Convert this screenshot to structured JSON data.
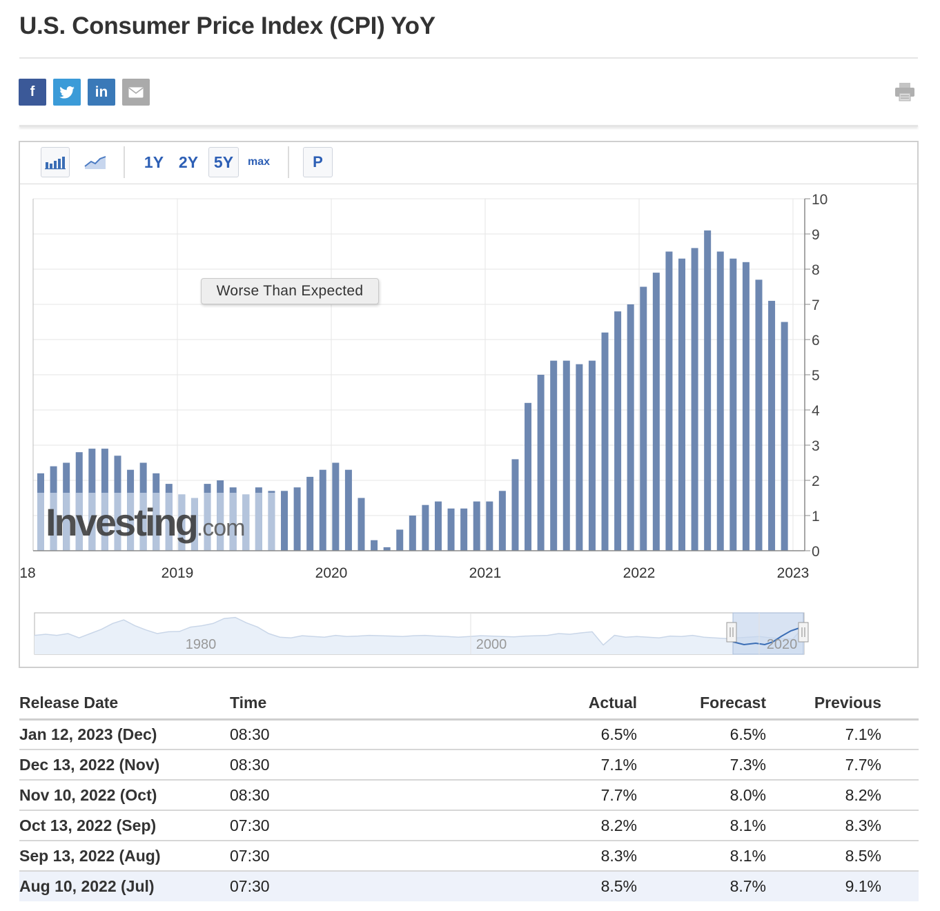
{
  "page": {
    "title": "U.S. Consumer Price Index (CPI) YoY"
  },
  "share": {
    "facebook": "f",
    "twitter": "twitter-bird-icon",
    "linkedin": "in",
    "email": "envelope-icon"
  },
  "toolbar": {
    "bar_icon": "bar-chart-icon",
    "line_icon": "line-chart-icon",
    "ranges": [
      "1Y",
      "2Y",
      "5Y",
      "max"
    ],
    "selected_range": "5Y",
    "p_label": "P"
  },
  "tooltip": "Worse Than Expected",
  "watermark": {
    "brand": "Investing",
    "suffix": ".com"
  },
  "colors": {
    "bar": "#6d87b1",
    "bar_faded": "#b4c4dc",
    "navigator_selected": "#3a6db5",
    "red": "#d9221c",
    "green": "#3b9b2d"
  },
  "chart_data": {
    "type": "bar",
    "x_ticks": [
      "18",
      "2019",
      "2020",
      "2021",
      "2022",
      "2023"
    ],
    "y_ticks": [
      "0",
      "1",
      "2",
      "3",
      "4",
      "5",
      "6",
      "7",
      "8",
      "9",
      "10"
    ],
    "ylim": [
      0,
      10
    ],
    "y_axis_side": "right",
    "grid": true,
    "categories": [
      "2018-02",
      "2018-03",
      "2018-04",
      "2018-05",
      "2018-06",
      "2018-07",
      "2018-08",
      "2018-09",
      "2018-10",
      "2018-11",
      "2018-12",
      "2019-01",
      "2019-02",
      "2019-03",
      "2019-04",
      "2019-05",
      "2019-06",
      "2019-07",
      "2019-08",
      "2019-09",
      "2019-10",
      "2019-11",
      "2019-12",
      "2020-01",
      "2020-02",
      "2020-03",
      "2020-04",
      "2020-05",
      "2020-06",
      "2020-07",
      "2020-08",
      "2020-09",
      "2020-10",
      "2020-11",
      "2020-12",
      "2021-01",
      "2021-02",
      "2021-03",
      "2021-04",
      "2021-05",
      "2021-06",
      "2021-07",
      "2021-08",
      "2021-09",
      "2021-10",
      "2021-11",
      "2021-12",
      "2022-01",
      "2022-02",
      "2022-03",
      "2022-04",
      "2022-05",
      "2022-06",
      "2022-07",
      "2022-08",
      "2022-09",
      "2022-10",
      "2022-11",
      "2022-12"
    ],
    "values": [
      2.2,
      2.4,
      2.5,
      2.8,
      2.9,
      2.9,
      2.7,
      2.3,
      2.5,
      2.2,
      1.9,
      1.6,
      1.5,
      1.9,
      2.0,
      1.8,
      1.6,
      1.8,
      1.7,
      1.7,
      1.8,
      2.1,
      2.3,
      2.5,
      2.3,
      1.5,
      0.3,
      0.1,
      0.6,
      1.0,
      1.3,
      1.4,
      1.2,
      1.2,
      1.4,
      1.4,
      1.7,
      2.6,
      4.2,
      5.0,
      5.4,
      5.4,
      5.3,
      5.4,
      6.2,
      6.8,
      7.0,
      7.5,
      7.9,
      8.5,
      8.3,
      8.6,
      9.1,
      8.5,
      8.3,
      8.2,
      7.7,
      7.1,
      6.5
    ],
    "navigator": {
      "x_ticks": [
        "1980",
        "2000",
        "2020"
      ]
    }
  },
  "table": {
    "headers": {
      "release_date": "Release Date",
      "time": "Time",
      "actual": "Actual",
      "forecast": "Forecast",
      "previous": "Previous"
    },
    "rows": [
      {
        "release_date": "Jan 12, 2023 (Dec)",
        "time": "08:30",
        "actual": "6.5%",
        "actual_status": "neutral",
        "forecast": "6.5%",
        "previous": "7.1%"
      },
      {
        "release_date": "Dec 13, 2022 (Nov)",
        "time": "08:30",
        "actual": "7.1%",
        "actual_status": "worse",
        "forecast": "7.3%",
        "previous": "7.7%"
      },
      {
        "release_date": "Nov 10, 2022 (Oct)",
        "time": "08:30",
        "actual": "7.7%",
        "actual_status": "worse",
        "forecast": "8.0%",
        "previous": "8.2%"
      },
      {
        "release_date": "Oct 13, 2022 (Sep)",
        "time": "07:30",
        "actual": "8.2%",
        "actual_status": "better",
        "forecast": "8.1%",
        "previous": "8.3%"
      },
      {
        "release_date": "Sep 13, 2022 (Aug)",
        "time": "07:30",
        "actual": "8.3%",
        "actual_status": "better",
        "forecast": "8.1%",
        "previous": "8.5%"
      },
      {
        "release_date": "Aug 10, 2022 (Jul)",
        "time": "07:30",
        "actual": "8.5%",
        "actual_status": "worse",
        "forecast": "8.7%",
        "previous": "9.1%"
      }
    ]
  }
}
